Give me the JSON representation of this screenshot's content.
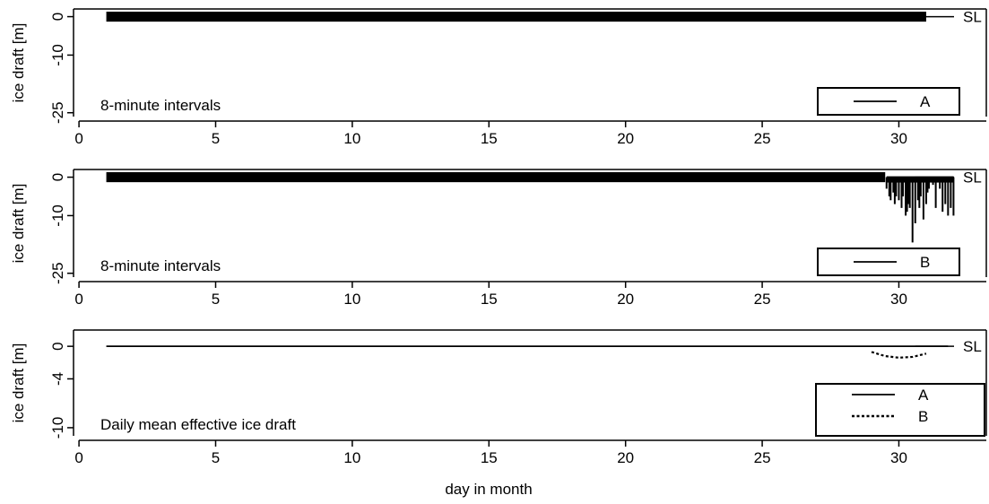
{
  "figure": {
    "xlabel": "day  in  month",
    "xticks": [
      0,
      5,
      10,
      15,
      20,
      25,
      30
    ],
    "xlim": [
      -0.2,
      33.2
    ]
  },
  "chart_data": [
    {
      "type": "line",
      "inner_label": "8-minute intervals",
      "ylabel": "ice  draft  [m]",
      "ylim": [
        -26,
        2
      ],
      "yticks": [
        0,
        -10,
        -25
      ],
      "sea_level_label": "SL",
      "legend": [
        {
          "label": "A",
          "style": "solid"
        }
      ],
      "series": [
        {
          "name": "A",
          "x": [
            1,
            31
          ],
          "values": [
            0,
            0
          ],
          "band": [
            1.3,
            -1.3
          ]
        }
      ]
    },
    {
      "type": "line",
      "inner_label": "8-minute intervals",
      "ylabel": "ice  draft  [m]",
      "ylim": [
        -26,
        2
      ],
      "yticks": [
        0,
        -10,
        -25
      ],
      "sea_level_label": "SL",
      "legend": [
        {
          "label": "B",
          "style": "solid"
        }
      ],
      "series": [
        {
          "name": "B",
          "x": [
            1,
            29.5
          ],
          "values": [
            0,
            0
          ],
          "band": [
            1.3,
            -1.3
          ],
          "spikes": {
            "x": [
              29.55,
              29.65,
              29.7,
              29.8,
              29.85,
              29.9,
              30.0,
              30.1,
              30.15,
              30.25,
              30.3,
              30.35,
              30.4,
              30.5,
              30.6,
              30.7,
              30.75,
              30.8,
              30.9,
              31.0,
              31.05,
              31.1,
              31.25,
              31.35,
              31.5,
              31.6,
              31.7,
              31.8,
              31.9,
              32.0
            ],
            "values": [
              -3,
              -5,
              -6,
              -4,
              -7,
              -5,
              -6,
              -8,
              -5,
              -10,
              -9,
              -7,
              -8,
              -17,
              -12,
              -6,
              -8,
              -5,
              -11,
              -7,
              -4,
              -3,
              -2,
              -8,
              -3,
              -9,
              -7,
              -10,
              -8,
              -10
            ]
          }
        }
      ]
    },
    {
      "type": "line",
      "inner_label": "Daily mean effective ice draft",
      "ylabel": "ice  draft  [m]",
      "ylim": [
        -11,
        2
      ],
      "yticks": [
        0,
        -4,
        -10
      ],
      "sea_level_label": "SL",
      "legend": [
        {
          "label": "A",
          "style": "solid"
        },
        {
          "label": "B",
          "style": "dashed"
        }
      ],
      "series": [
        {
          "name": "A",
          "style": "solid",
          "x": [
            1,
            31.8
          ],
          "values": [
            0,
            0
          ]
        },
        {
          "name": "B",
          "style": "dashed",
          "x": [
            29,
            29.5,
            30,
            30.5,
            31
          ],
          "values": [
            -0.7,
            -1.2,
            -1.4,
            -1.3,
            -0.9
          ]
        }
      ]
    }
  ]
}
